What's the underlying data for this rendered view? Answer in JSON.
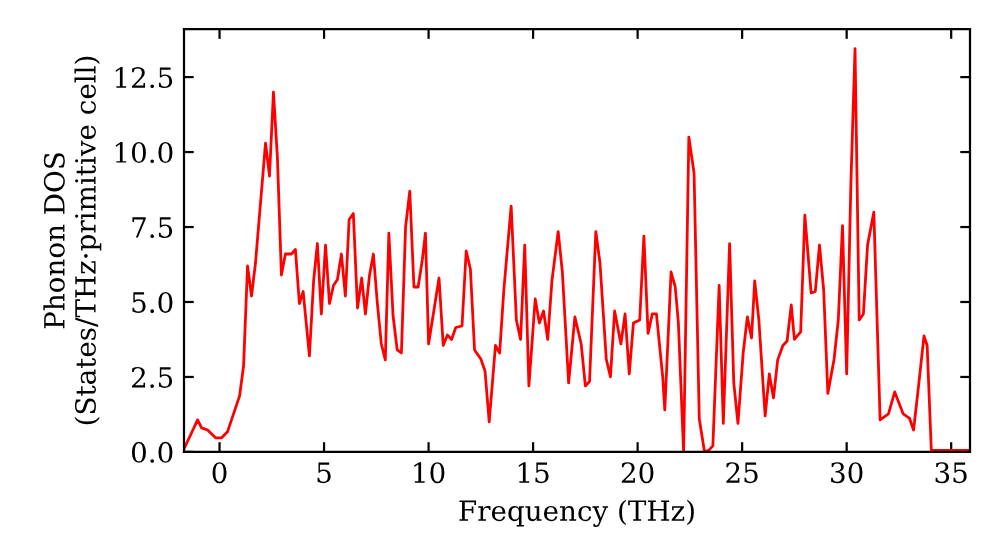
{
  "chart_data": {
    "type": "line",
    "xlabel": "Frequency (THz)",
    "ylabel": "Phonon DOS\n(States/THz·primitive cell)",
    "xlim": [
      -1.7,
      35.9
    ],
    "ylim": [
      0,
      14.1
    ],
    "xticks": [
      0,
      5,
      10,
      15,
      20,
      25,
      30,
      35
    ],
    "yticks": [
      {
        "value": 0,
        "label": "0.0"
      },
      {
        "value": 2.5,
        "label": "2.5"
      },
      {
        "value": 5,
        "label": "5.0"
      },
      {
        "value": 7.5,
        "label": "7.5"
      },
      {
        "value": 10,
        "label": "10.0"
      },
      {
        "value": 12.5,
        "label": "12.5"
      }
    ],
    "grid": false,
    "legend": false,
    "marker": "none",
    "line_style": "solid",
    "series": [
      {
        "color": "#ff0000",
        "x": [
          -1.7,
          -1.05,
          -0.86,
          -0.57,
          -0.19,
          0.1,
          0.38,
          0.67,
          0.96,
          1.15,
          1.34,
          1.53,
          1.72,
          2.2,
          2.39,
          2.58,
          2.77,
          2.96,
          3.15,
          3.44,
          3.63,
          3.82,
          4.0,
          4.3,
          4.5,
          4.68,
          4.87,
          5.07,
          5.26,
          5.45,
          5.64,
          5.83,
          6.02,
          6.2,
          6.4,
          6.6,
          6.8,
          6.98,
          7.17,
          7.36,
          7.55,
          7.74,
          7.93,
          8.1,
          8.3,
          8.5,
          8.7,
          8.9,
          9.1,
          9.3,
          9.5,
          9.7,
          9.85,
          10.0,
          10.5,
          10.7,
          10.9,
          11.1,
          11.3,
          11.6,
          11.8,
          12.0,
          12.2,
          12.5,
          12.7,
          12.9,
          13.2,
          13.4,
          13.6,
          13.95,
          14.2,
          14.4,
          14.6,
          14.8,
          15.1,
          15.3,
          15.5,
          15.7,
          15.9,
          16.2,
          16.4,
          16.7,
          17.0,
          17.3,
          17.5,
          17.7,
          18.0,
          18.2,
          18.5,
          18.7,
          18.9,
          19.2,
          19.4,
          19.6,
          19.8,
          20.1,
          20.3,
          20.5,
          20.7,
          20.9,
          21.2,
          21.3,
          21.6,
          21.8,
          21.95,
          22.2,
          22.45,
          22.7,
          22.95,
          23.2,
          23.4,
          23.6,
          23.9,
          24.1,
          24.4,
          24.6,
          24.8,
          25.05,
          25.25,
          25.45,
          25.6,
          25.8,
          26.1,
          26.3,
          26.5,
          26.7,
          26.95,
          27.15,
          27.35,
          27.5,
          27.8,
          28.0,
          28.3,
          28.5,
          28.7,
          28.9,
          29.1,
          29.4,
          29.6,
          29.8,
          30.0,
          30.2,
          30.4,
          30.6,
          30.8,
          31.0,
          31.3,
          31.6,
          32.0,
          32.3,
          32.7,
          33.0,
          33.2,
          33.4,
          33.7,
          33.85,
          34.05,
          35.9
        ],
        "values": [
          0.1,
          1.07,
          0.8,
          0.73,
          0.47,
          0.47,
          0.67,
          1.27,
          1.87,
          2.87,
          6.2,
          5.2,
          6.3,
          10.3,
          9.2,
          12.0,
          9.8,
          5.9,
          6.6,
          6.6,
          6.75,
          4.95,
          5.35,
          3.2,
          5.7,
          6.95,
          4.6,
          6.9,
          4.95,
          5.55,
          5.75,
          6.6,
          5.2,
          7.75,
          7.95,
          4.8,
          5.8,
          4.6,
          5.87,
          6.6,
          4.95,
          3.6,
          3.07,
          7.3,
          4.55,
          3.4,
          3.3,
          7.5,
          8.7,
          5.5,
          5.5,
          6.4,
          7.3,
          3.6,
          5.8,
          3.55,
          3.9,
          3.75,
          4.15,
          4.2,
          6.7,
          6.1,
          3.4,
          3.1,
          2.7,
          1.0,
          3.55,
          3.3,
          5.4,
          8.2,
          4.4,
          3.75,
          6.9,
          2.2,
          5.1,
          4.3,
          4.7,
          3.75,
          5.7,
          7.35,
          6.0,
          2.3,
          4.5,
          3.6,
          2.2,
          2.35,
          7.35,
          6.3,
          3.1,
          2.5,
          4.7,
          3.6,
          4.6,
          2.6,
          4.3,
          4.4,
          7.2,
          3.95,
          4.6,
          4.6,
          2.5,
          1.4,
          6.0,
          5.5,
          4.3,
          0,
          10.5,
          9.3,
          1.1,
          0,
          0.05,
          0.2,
          5.55,
          0.95,
          6.95,
          2.3,
          0.95,
          3.3,
          4.5,
          3.8,
          5.7,
          4.4,
          1.2,
          2.6,
          1.8,
          3.07,
          3.55,
          3.7,
          4.9,
          3.75,
          4.0,
          7.9,
          5.3,
          5.35,
          6.9,
          5.4,
          1.95,
          3.1,
          4.4,
          7.55,
          2.6,
          8.9,
          13.45,
          4.4,
          4.6,
          6.9,
          8.0,
          1.07,
          1.27,
          2.0,
          1.27,
          1.13,
          0.73,
          1.95,
          3.87,
          3.55,
          0.05,
          0.05
        ]
      }
    ]
  }
}
